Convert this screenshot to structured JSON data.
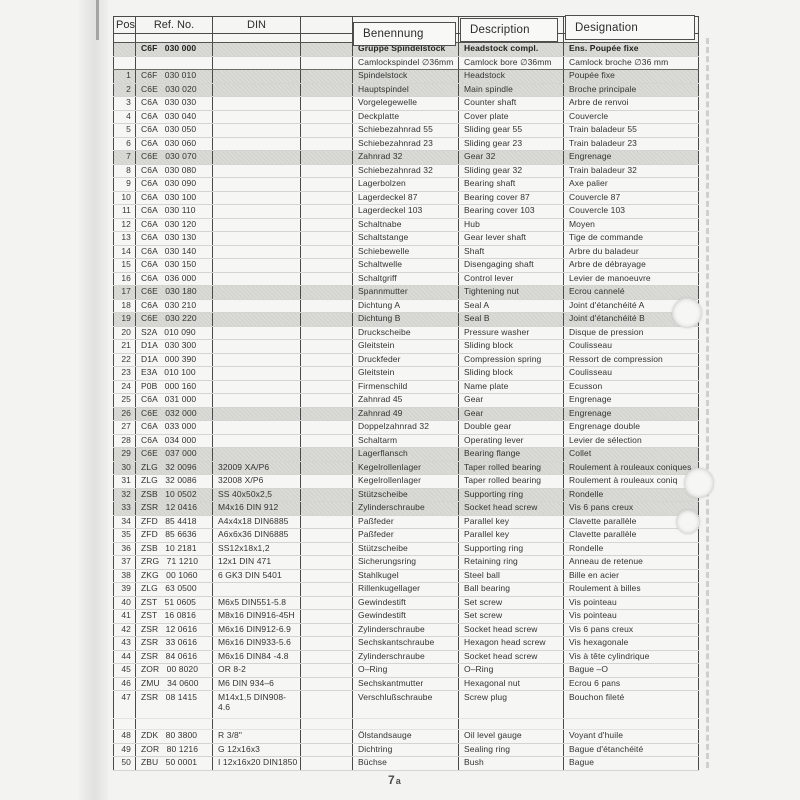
{
  "page": {
    "footer": {
      "number": "7",
      "suffix": "a"
    }
  },
  "table": {
    "headers": {
      "pos": "Pos",
      "ref": "Ref. No.",
      "din": "DIN",
      "blank": "",
      "benennung": "Benennung",
      "description": "Description",
      "designation": "Designation"
    },
    "rows": [
      {
        "flags": "shaded bold",
        "pos": "",
        "ref": "C6F   030 000",
        "din": "",
        "ben": "Gruppe Spindelstock",
        "desc": "Headstock compl.",
        "desig": "Ens. Poupée fixe"
      },
      {
        "flags": "darkline",
        "pos": "",
        "ref": "",
        "din": "",
        "ben": "Camlockspindel ∅36mm",
        "desc": "Camlock bore ∅36mm",
        "desig": "Camlock broche ∅36 mm"
      },
      {
        "flags": "shaded",
        "pos": "1",
        "ref": "C6F   030 010",
        "din": "",
        "ben": "Spindelstock",
        "desc": "Headstock",
        "desig": "Poupée fixe"
      },
      {
        "flags": "shaded",
        "pos": "2",
        "ref": "C6E   030 020",
        "din": "",
        "ben": "Hauptspindel",
        "desc": "Main spindle",
        "desig": "Broche principale"
      },
      {
        "flags": "",
        "pos": "3",
        "ref": "C6A   030 030",
        "din": "",
        "ben": "Vorgelegewelle",
        "desc": "Counter shaft",
        "desig": "Arbre de renvoi"
      },
      {
        "flags": "",
        "pos": "4",
        "ref": "C6A   030 040",
        "din": "",
        "ben": "Deckplatte",
        "desc": "Cover plate",
        "desig": "Couvercle"
      },
      {
        "flags": "",
        "pos": "5",
        "ref": "C6A   030 050",
        "din": "",
        "ben": "Schiebezahnrad 55",
        "desc": "Sliding gear 55",
        "desig": "Train baladeur 55"
      },
      {
        "flags": "",
        "pos": "6",
        "ref": "C6A   030 060",
        "din": "",
        "ben": "Schiebezahnrad 23",
        "desc": "Sliding gear 23",
        "desig": "Train baladeur 23"
      },
      {
        "flags": "shaded",
        "pos": "7",
        "ref": "C6E   030 070",
        "din": "",
        "ben": "Zahnrad 32",
        "desc": "Gear 32",
        "desig": "Engrenage"
      },
      {
        "flags": "",
        "pos": "8",
        "ref": "C6A   030 080",
        "din": "",
        "ben": "Schiebezahnrad 32",
        "desc": "Sliding gear 32",
        "desig": "Train baladeur 32"
      },
      {
        "flags": "",
        "pos": "9",
        "ref": "C6A   030 090",
        "din": "",
        "ben": "Lagerbolzen",
        "desc": "Bearing shaft",
        "desig": "Axe palier"
      },
      {
        "flags": "",
        "pos": "10",
        "ref": "C6A   030 100",
        "din": "",
        "ben": "Lagerdeckel 87",
        "desc": "Bearing cover 87",
        "desig": "Couvercle 87"
      },
      {
        "flags": "",
        "pos": "11",
        "ref": "C6A   030 110",
        "din": "",
        "ben": "Lagerdeckel 103",
        "desc": "Bearing cover 103",
        "desig": "Couvercle 103"
      },
      {
        "flags": "",
        "pos": "12",
        "ref": "C6A   030 120",
        "din": "",
        "ben": "Schaltnabe",
        "desc": "Hub",
        "desig": "Moyen"
      },
      {
        "flags": "",
        "pos": "13",
        "ref": "C6A   030 130",
        "din": "",
        "ben": "Schaltstange",
        "desc": "Gear lever shaft",
        "desig": "Tige de commande"
      },
      {
        "flags": "",
        "pos": "14",
        "ref": "C6A   030 140",
        "din": "",
        "ben": "Schiebewelle",
        "desc": "Shaft",
        "desig": "Arbre du baladeur"
      },
      {
        "flags": "",
        "pos": "15",
        "ref": "C6A   030 150",
        "din": "",
        "ben": "Schaltwelle",
        "desc": "Disengaging shaft",
        "desig": "Arbre de débrayage"
      },
      {
        "flags": "",
        "pos": "16",
        "ref": "C6A   036 000",
        "din": "",
        "ben": "Schaltgriff",
        "desc": "Control lever",
        "desig": "Levier de manoeuvre"
      },
      {
        "flags": "shaded",
        "pos": "17",
        "ref": "C6E   030 180",
        "din": "",
        "ben": "Spannmutter",
        "desc": "Tightening nut",
        "desig": "Ecrou cannelé"
      },
      {
        "flags": "",
        "pos": "18",
        "ref": "C6A   030 210",
        "din": "",
        "ben": "Dichtung A",
        "desc": "Seal A",
        "desig": "Joint d'étanchéité A"
      },
      {
        "flags": "shaded",
        "pos": "19",
        "ref": "C6E   030 220",
        "din": "",
        "ben": "Dichtung B",
        "desc": "Seal B",
        "desig": "Joint d'étanchéité B"
      },
      {
        "flags": "",
        "pos": "20",
        "ref": "S2A   010 090",
        "din": "",
        "ben": "Druckscheibe",
        "desc": "Pressure washer",
        "desig": "Disque de pression"
      },
      {
        "flags": "",
        "pos": "21",
        "ref": "D1A   030 300",
        "din": "",
        "ben": "Gleitstein",
        "desc": "Sliding block",
        "desig": "Coulisseau"
      },
      {
        "flags": "",
        "pos": "22",
        "ref": "D1A   000 390",
        "din": "",
        "ben": "Druckfeder",
        "desc": "Compression spring",
        "desig": "Ressort de compression"
      },
      {
        "flags": "",
        "pos": "23",
        "ref": "E3A   010 100",
        "din": "",
        "ben": "Gleitstein",
        "desc": "Sliding block",
        "desig": "Coulisseau"
      },
      {
        "flags": "",
        "pos": "24",
        "ref": "P0B   000 160",
        "din": "",
        "ben": "Firmenschild",
        "desc": "Name plate",
        "desig": "Ecusson"
      },
      {
        "flags": "",
        "pos": "25",
        "ref": "C6A   031 000",
        "din": "",
        "ben": "Zahnrad 45",
        "desc": "Gear",
        "desig": "Engrenage"
      },
      {
        "flags": "shaded",
        "pos": "26",
        "ref": "C6E   032 000",
        "din": "",
        "ben": "Zahnrad 49",
        "desc": "Gear",
        "desig": "Engrenage"
      },
      {
        "flags": "",
        "pos": "27",
        "ref": "C6A   033 000",
        "din": "",
        "ben": "Doppelzahnrad 32",
        "desc": "Double gear",
        "desig": "Engrenage double"
      },
      {
        "flags": "",
        "pos": "28",
        "ref": "C6A   034 000",
        "din": "",
        "ben": "Schaltarm",
        "desc": "Operating lever",
        "desig": "Levier de sélection"
      },
      {
        "flags": "shaded",
        "pos": "29",
        "ref": "C6E   037 000",
        "din": "",
        "ben": "Lagerflansch",
        "desc": "Bearing flange",
        "desig": "Collet"
      },
      {
        "flags": "shaded",
        "pos": "30",
        "ref": "ZLG   32 0096",
        "din": "32009 XA/P6",
        "ben": "Kegelrollenlager",
        "desc": "Taper rolled bearing",
        "desig": "Roulement à rouleaux coniques"
      },
      {
        "flags": "",
        "pos": "31",
        "ref": "ZLG   32 0086",
        "din": "32008 X/P6",
        "ben": "Kegelrollenlager",
        "desc": "Taper rolled bearing",
        "desig": "Roulement à rouleaux coniq"
      },
      {
        "flags": "shaded",
        "pos": "32",
        "ref": "ZSB   10 0502",
        "din": "SS 40x50x2,5",
        "ben": "Stützscheibe",
        "desc": "Supporting ring",
        "desig": "Rondelle"
      },
      {
        "flags": "shaded",
        "pos": "33",
        "ref": "ZSR   12 0416",
        "din": "M4x16 DIN 912",
        "ben": "Zylinderschraube",
        "desc": "Socket head screw",
        "desig": "Vis 6 pans creux"
      },
      {
        "flags": "",
        "pos": "34",
        "ref": "ZFD   85 4418",
        "din": "A4x4x18 DIN6885",
        "ben": "Paßfeder",
        "desc": "Parallel key",
        "desig": "Clavette parallèle"
      },
      {
        "flags": "",
        "pos": "35",
        "ref": "ZFD   85 6636",
        "din": "A6x6x36 DIN6885",
        "ben": "Paßfeder",
        "desc": "Parallel key",
        "desig": "Clavette parallèle"
      },
      {
        "flags": "",
        "pos": "36",
        "ref": "ZSB   10 2181",
        "din": "SS12x18x1,2",
        "ben": "Stützscheibe",
        "desc": "Supporting ring",
        "desig": "Rondelle"
      },
      {
        "flags": "",
        "pos": "37",
        "ref": "ZRG   71 1210",
        "din": "12x1 DIN 471",
        "ben": "Sicherungsring",
        "desc": "Retaining ring",
        "desig": "Anneau de retenue"
      },
      {
        "flags": "",
        "pos": "38",
        "ref": "ZKG   00 1060",
        "din": "6 GK3 DIN 5401",
        "ben": "Stahlkugel",
        "desc": "Steel ball",
        "desig": "Bille en acier"
      },
      {
        "flags": "",
        "pos": "39",
        "ref": "ZLG   63 0500",
        "din": "",
        "ben": "Rillenkugellager",
        "desc": "Ball bearing",
        "desig": "Roulement à billes"
      },
      {
        "flags": "",
        "pos": "40",
        "ref": "ZST   51 0605",
        "din": "M6x5 DIN551-5.8",
        "ben": "Gewindestift",
        "desc": "Set screw",
        "desig": "Vis pointeau"
      },
      {
        "flags": "",
        "pos": "41",
        "ref": "ZST   16 0816",
        "din": "M8x16 DIN916-45H",
        "ben": "Gewindestift",
        "desc": "Set screw",
        "desig": "Vis pointeau"
      },
      {
        "flags": "",
        "pos": "42",
        "ref": "ZSR   12 0616",
        "din": "M6x16 DIN912-6.9",
        "ben": "Zylinderschraube",
        "desc": "Socket head screw",
        "desig": "Vis 6 pans creux"
      },
      {
        "flags": "",
        "pos": "43",
        "ref": "ZSR   33 0616",
        "din": "M6x16 DIN933-5.6",
        "ben": "Sechskantschraube",
        "desc": "Hexagon head screw",
        "desig": "Vis hexagonale"
      },
      {
        "flags": "",
        "pos": "44",
        "ref": "ZSR   84 0616",
        "din": "M6x16 DIN84 -4.8",
        "ben": "Zylinderschraube",
        "desc": "Socket head screw",
        "desig": "Vis à tête cylindrique"
      },
      {
        "flags": "",
        "pos": "45",
        "ref": "ZOR   00 8020",
        "din": "OR 8-2",
        "ben": "O–Ring",
        "desc": "O–Ring",
        "desig": "Bague –O"
      },
      {
        "flags": "",
        "pos": "46",
        "ref": "ZMU   34 0600",
        "din": "M6 DIN 934–6",
        "ben": "Sechskantmutter",
        "desc": "Hexagonal nut",
        "desig": "Ecrou 6 pans"
      },
      {
        "flags": "tall",
        "pos": "47",
        "ref": "ZSR   08 1415",
        "din": "M14x1,5 DIN908-\n4.6",
        "ben": "Verschlußschraube",
        "desc": "Screw plug",
        "desig": "Bouchon fileté"
      },
      {
        "flags": "spacer",
        "pos": "",
        "ref": "",
        "din": "",
        "ben": "",
        "desc": "",
        "desig": ""
      },
      {
        "flags": "",
        "pos": "48",
        "ref": "ZDK   80 3800",
        "din": "R 3/8\"",
        "ben": "Ölstandsauge",
        "desc": "Oil level gauge",
        "desig": "Voyant d'huile"
      },
      {
        "flags": "",
        "pos": "49",
        "ref": "ZOR   80 1216",
        "din": "G 12x16x3",
        "ben": "Dichtring",
        "desc": "Sealing ring",
        "desig": "Bague d'étanchéité"
      },
      {
        "flags": "",
        "pos": "50",
        "ref": "ZBU   50 0001",
        "din": "I 12x16x20 DIN1850",
        "ben": "Büchse",
        "desc": "Bush",
        "desig": "Bague"
      }
    ]
  },
  "bleed_through": {
    "marks": [
      "24 4 29 15 12 7 22 4",
      "58 24 57 46 30 41 27 38 13 23"
    ]
  }
}
